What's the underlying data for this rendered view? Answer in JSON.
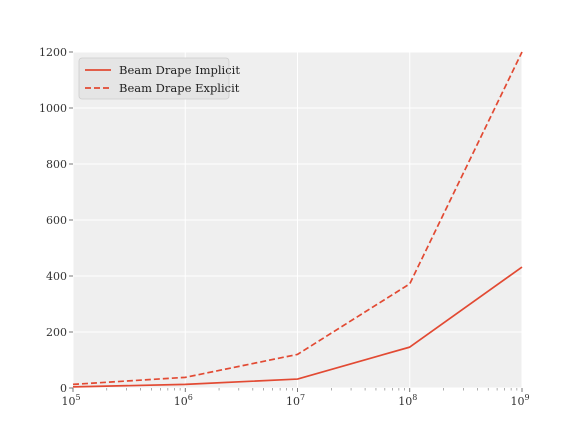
{
  "chart_data": {
    "type": "line",
    "title": "",
    "xlabel": "",
    "ylabel": "",
    "x_scale": "log",
    "x": [
      100000,
      1000000,
      10000000,
      100000000,
      1000000000
    ],
    "xlim": [
      100000,
      1000000000
    ],
    "ylim": [
      0,
      1200
    ],
    "x_ticks": [
      {
        "value": 100000,
        "base": "10",
        "exp": "5"
      },
      {
        "value": 1000000,
        "base": "10",
        "exp": "6"
      },
      {
        "value": 10000000,
        "base": "10",
        "exp": "7"
      },
      {
        "value": 100000000,
        "base": "10",
        "exp": "8"
      },
      {
        "value": 1000000000,
        "base": "10",
        "exp": "9"
      }
    ],
    "y_ticks": [
      0,
      200,
      400,
      600,
      800,
      1000,
      1200
    ],
    "grid": true,
    "legend_position": "top-left",
    "series": [
      {
        "name": "Beam Drape Implicit",
        "style": "solid",
        "color": "#e24a33",
        "values": [
          4,
          13,
          32,
          146,
          432
        ]
      },
      {
        "name": "Beam Drape Explicit",
        "style": "dashed",
        "color": "#e24a33",
        "values": [
          13,
          38,
          120,
          372,
          1200
        ]
      }
    ]
  }
}
